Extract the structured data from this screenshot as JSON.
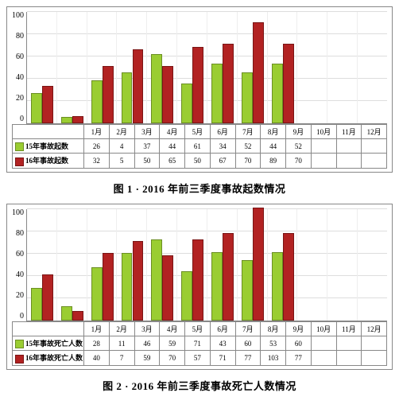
{
  "months": [
    "1月",
    "2月",
    "3月",
    "4月",
    "5月",
    "6月",
    "7月",
    "8月",
    "9月",
    "10月",
    "11月",
    "12月"
  ],
  "fig1": {
    "caption": "图 1 · 2016 年前三季度事故起数情况",
    "type": "bar",
    "ymax": 100,
    "ytick_step": 20,
    "grid_color": "#dddddd",
    "border_color": "#888888",
    "bg": "#ffffff",
    "label_fontsize": 10,
    "caption_fontsize": 13,
    "seriesA": {
      "name": "15年事故起数",
      "color": "#9acd32",
      "border": "#6b8e23",
      "values": [
        26,
        4,
        37,
        44,
        61,
        34,
        52,
        44,
        52,
        null,
        null,
        null
      ]
    },
    "seriesB": {
      "name": "16年事故起数",
      "color": "#b22222",
      "border": "#7a1515",
      "values": [
        32,
        5,
        50,
        65,
        50,
        67,
        70,
        89,
        70,
        null,
        null,
        null
      ]
    }
  },
  "fig2": {
    "caption": "图 2 · 2016 年前三季度事故死亡人数情况",
    "type": "bar",
    "ymax": 100,
    "ytick_step": 20,
    "grid_color": "#dddddd",
    "border_color": "#888888",
    "bg": "#ffffff",
    "label_fontsize": 10,
    "caption_fontsize": 13,
    "seriesA": {
      "name": "15年事故死亡人数",
      "color": "#9acd32",
      "border": "#6b8e23",
      "values": [
        28,
        11,
        46,
        59,
        71,
        43,
        60,
        53,
        60,
        null,
        null,
        null
      ]
    },
    "seriesB": {
      "name": "16年事故死亡人数",
      "color": "#b22222",
      "border": "#7a1515",
      "values": [
        40,
        7,
        59,
        70,
        57,
        71,
        77,
        103,
        77,
        null,
        null,
        null
      ]
    }
  }
}
